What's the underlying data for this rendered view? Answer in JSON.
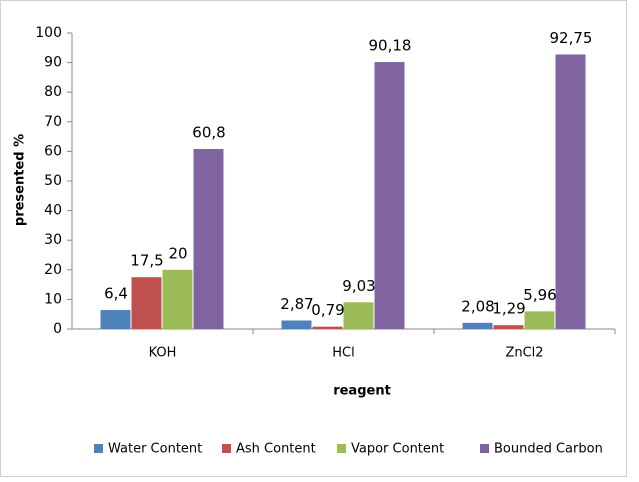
{
  "chart_data": {
    "type": "bar",
    "categories": [
      "KOH",
      "HCl",
      "ZnCl2"
    ],
    "series": [
      {
        "name": "Water Content",
        "color": "#4f81bd",
        "values": [
          6.4,
          2.87,
          2.08
        ],
        "value_labels": [
          "6,4",
          "2,87",
          "2,08"
        ]
      },
      {
        "name": "Ash Content",
        "color": "#c0504d",
        "values": [
          17.5,
          0.79,
          1.29
        ],
        "value_labels": [
          "17,5",
          "0,79",
          "1,29"
        ]
      },
      {
        "name": "Vapor Content",
        "color": "#9bbb59",
        "values": [
          20,
          9.03,
          5.96
        ],
        "value_labels": [
          "20",
          "9,03",
          "5,96"
        ]
      },
      {
        "name": "Bounded Carbon",
        "color": "#8064a2",
        "values": [
          60.8,
          90.18,
          92.75
        ],
        "value_labels": [
          "60,8",
          "90,18",
          "92,75"
        ]
      }
    ],
    "ylabel": "presented %",
    "xlabel": "reagent",
    "ylim": [
      0,
      100
    ],
    "yticks": [
      0,
      10,
      20,
      30,
      40,
      50,
      60,
      70,
      80,
      90,
      100
    ],
    "legend": "bottom"
  }
}
